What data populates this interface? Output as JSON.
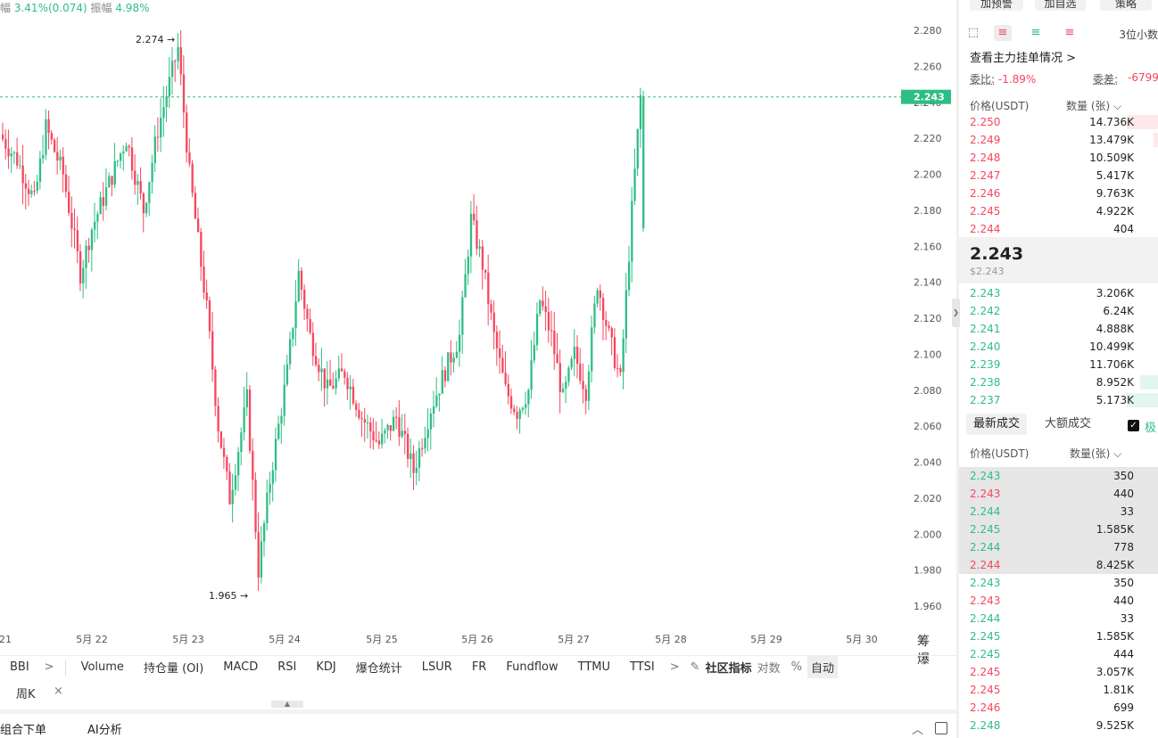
{
  "header": {
    "range_label": "幅",
    "range_value": "3.41%(0.074)",
    "amplitude_label": "振幅",
    "amplitude_value": "4.98%"
  },
  "chart_data": {
    "type": "candlestick",
    "y_ticks": [
      "2.280",
      "2.260",
      "2.240",
      "2.220",
      "2.200",
      "2.180",
      "2.160",
      "2.140",
      "2.120",
      "2.100",
      "2.080",
      "2.060",
      "2.040",
      "2.020",
      "2.000",
      "1.980",
      "1.960"
    ],
    "x_ticks": [
      "21",
      "5月 22",
      "5月 23",
      "5月 24",
      "5月 25",
      "5月 26",
      "5月 27",
      "5月 28",
      "5月 29",
      "5月 30"
    ],
    "last_price": "2.243",
    "high_marker": "2.274",
    "low_marker": "1.965",
    "ylim": [
      1.95,
      2.29
    ],
    "waypoints": [
      [
        0,
        2.222
      ],
      [
        6,
        2.208
      ],
      [
        12,
        2.185
      ],
      [
        16,
        2.226
      ],
      [
        22,
        2.2
      ],
      [
        28,
        2.145
      ],
      [
        32,
        2.17
      ],
      [
        38,
        2.195
      ],
      [
        44,
        2.22
      ],
      [
        50,
        2.18
      ],
      [
        55,
        2.225
      ],
      [
        62,
        2.27
      ],
      [
        66,
        2.2
      ],
      [
        72,
        2.125
      ],
      [
        76,
        2.06
      ],
      [
        80,
        2.02
      ],
      [
        86,
        2.075
      ],
      [
        90,
        1.98
      ],
      [
        94,
        2.03
      ],
      [
        100,
        2.09
      ],
      [
        104,
        2.145
      ],
      [
        108,
        2.11
      ],
      [
        114,
        2.08
      ],
      [
        120,
        2.09
      ],
      [
        126,
        2.065
      ],
      [
        132,
        2.05
      ],
      [
        138,
        2.065
      ],
      [
        144,
        2.035
      ],
      [
        150,
        2.07
      ],
      [
        156,
        2.095
      ],
      [
        160,
        2.11
      ],
      [
        164,
        2.175
      ],
      [
        168,
        2.15
      ],
      [
        172,
        2.11
      ],
      [
        176,
        2.08
      ],
      [
        180,
        2.068
      ],
      [
        184,
        2.08
      ],
      [
        188,
        2.13
      ],
      [
        192,
        2.11
      ],
      [
        196,
        2.075
      ],
      [
        200,
        2.1
      ],
      [
        204,
        2.08
      ],
      [
        208,
        2.14
      ],
      [
        212,
        2.11
      ],
      [
        216,
        2.085
      ],
      [
        220,
        2.18
      ],
      [
        223,
        2.243
      ]
    ]
  },
  "axis_corner": "筹 爆",
  "indicators": [
    "BBI",
    "Volume",
    "持仓量 (OI)",
    "MACD",
    "RSI",
    "KDJ",
    "爆仓统计",
    "LSUR",
    "FR",
    "Fundflow",
    "TTMU",
    "TTSI"
  ],
  "indicator_tools": {
    "community": "社区指标",
    "log": "对数",
    "percent": "%",
    "auto": "自动",
    "more": ">"
  },
  "period": {
    "label": "周K",
    "close": "×"
  },
  "bottom": {
    "combo_order": "组合下单",
    "ai_analysis": "AI分析"
  },
  "right_top_buttons": [
    "加预警",
    "加自选",
    "策略"
  ],
  "orderbook": {
    "decimals": "3位小数",
    "depth_link": "查看主力挂单情况 >",
    "bid_ratio_label": "委比:",
    "bid_ratio_value": "-1.89%",
    "diff_label": "委差:",
    "diff_value": "-6799",
    "price_header": "价格(USDT)",
    "qty_header": "数量 (张)",
    "asks": [
      {
        "price": "2.250",
        "qty": "14.736K",
        "depth": 0.35
      },
      {
        "price": "2.249",
        "qty": "13.479K",
        "depth": 0.05
      },
      {
        "price": "2.248",
        "qty": "10.509K",
        "depth": 0.0
      },
      {
        "price": "2.247",
        "qty": "5.417K",
        "depth": 0.0
      },
      {
        "price": "2.246",
        "qty": "9.763K",
        "depth": 0.0
      },
      {
        "price": "2.245",
        "qty": "4.922K",
        "depth": 0.0
      },
      {
        "price": "2.244",
        "qty": "404",
        "depth": 0.0
      }
    ],
    "mid_price": "2.243",
    "mid_price_usd": "$2.243",
    "bids": [
      {
        "price": "2.243",
        "qty": "3.206K",
        "depth": 0.0
      },
      {
        "price": "2.242",
        "qty": "6.24K",
        "depth": 0.0
      },
      {
        "price": "2.241",
        "qty": "4.888K",
        "depth": 0.0
      },
      {
        "price": "2.240",
        "qty": "10.499K",
        "depth": 0.0
      },
      {
        "price": "2.239",
        "qty": "11.706K",
        "depth": 0.0
      },
      {
        "price": "2.238",
        "qty": "8.952K",
        "depth": 0.2
      },
      {
        "price": "2.237",
        "qty": "5.173K",
        "depth": 0.35
      }
    ]
  },
  "trades": {
    "tab_latest": "最新成交",
    "tab_large": "大额成交",
    "filter_label": "极",
    "price_header": "价格(USDT)",
    "qty_header": "数量(张)",
    "rows": [
      {
        "price": "2.243",
        "qty": "350",
        "side": "buy",
        "hl": true
      },
      {
        "price": "2.243",
        "qty": "440",
        "side": "sell",
        "hl": true
      },
      {
        "price": "2.244",
        "qty": "33",
        "side": "buy",
        "hl": true
      },
      {
        "price": "2.245",
        "qty": "1.585K",
        "side": "buy",
        "hl": true
      },
      {
        "price": "2.244",
        "qty": "778",
        "side": "buy",
        "hl": true
      },
      {
        "price": "2.244",
        "qty": "8.425K",
        "side": "sell",
        "hl": true
      },
      {
        "price": "2.243",
        "qty": "350",
        "side": "buy",
        "hl": false
      },
      {
        "price": "2.243",
        "qty": "440",
        "side": "sell",
        "hl": false
      },
      {
        "price": "2.244",
        "qty": "33",
        "side": "buy",
        "hl": false
      },
      {
        "price": "2.245",
        "qty": "1.585K",
        "side": "buy",
        "hl": false
      },
      {
        "price": "2.245",
        "qty": "444",
        "side": "buy",
        "hl": false
      },
      {
        "price": "2.245",
        "qty": "3.057K",
        "side": "sell",
        "hl": false
      },
      {
        "price": "2.245",
        "qty": "1.81K",
        "side": "sell",
        "hl": false
      },
      {
        "price": "2.246",
        "qty": "699",
        "side": "sell",
        "hl": false
      },
      {
        "price": "2.248",
        "qty": "9.525K",
        "side": "buy",
        "hl": false
      }
    ]
  },
  "colors": {
    "up": "#2ebd85",
    "down": "#f6465d"
  }
}
